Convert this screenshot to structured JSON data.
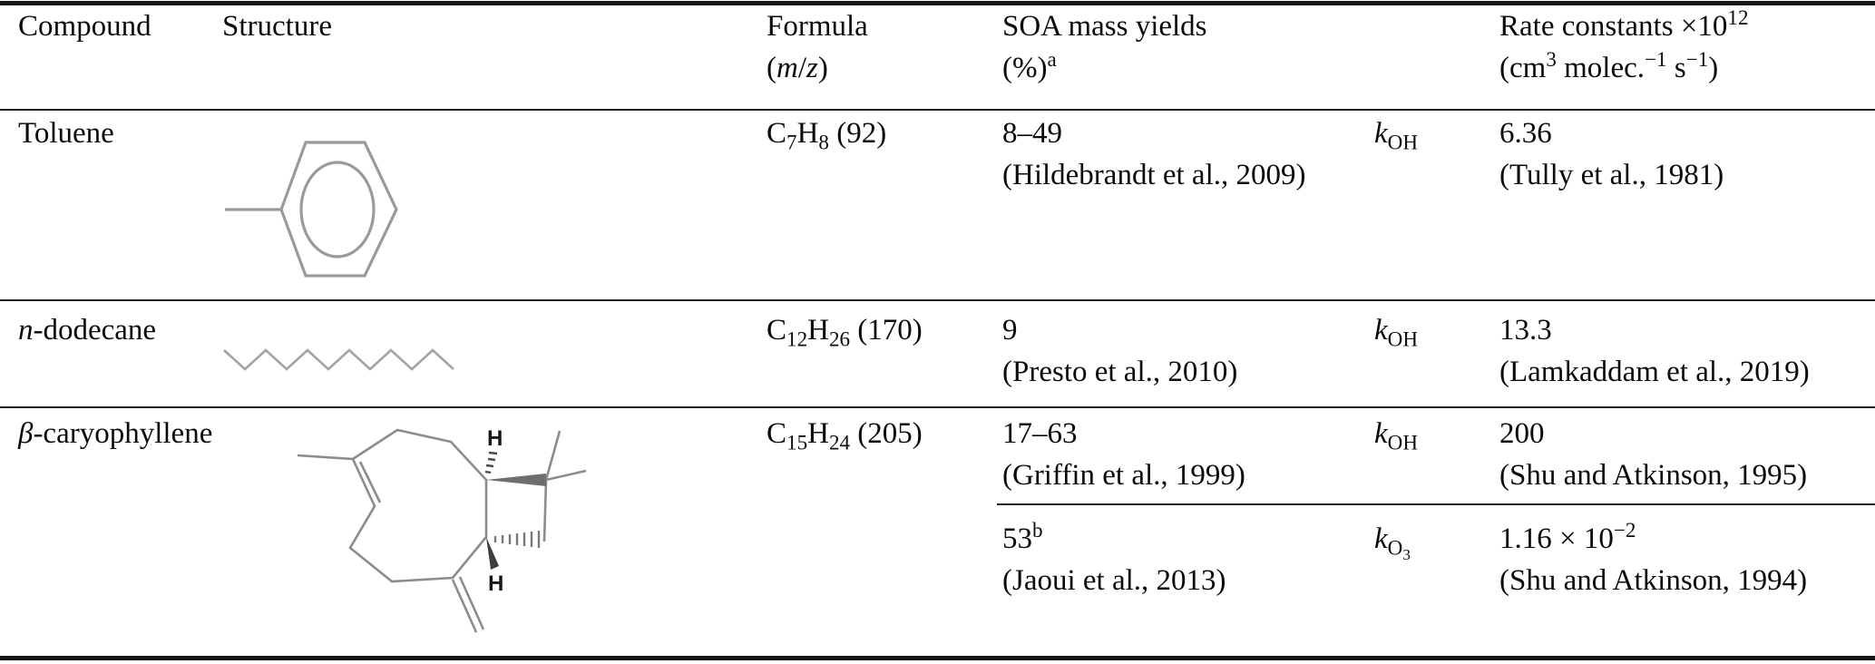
{
  "header": {
    "compound": "Compound",
    "structure": "Structure",
    "formula_l1": [
      {
        "t": "Formula"
      }
    ],
    "formula_l2": [
      {
        "t": "("
      },
      {
        "t": "m",
        "m": "i"
      },
      {
        "t": "/"
      },
      {
        "t": "z",
        "m": "i"
      },
      {
        "t": ")"
      }
    ],
    "soa_l1": [
      {
        "t": "SOA mass yields"
      }
    ],
    "soa_l2": [
      {
        "t": "(%)"
      },
      {
        "t": "a",
        "m": "sup"
      }
    ],
    "rate_l1": [
      {
        "t": "Rate constants ×10"
      },
      {
        "t": "12",
        "m": "sup"
      }
    ],
    "rate_l2": [
      {
        "t": "(cm"
      },
      {
        "t": "3",
        "m": "sup"
      },
      {
        "t": " molec."
      },
      {
        "t": "−1",
        "m": "sup"
      },
      {
        "t": " s"
      },
      {
        "t": "−1",
        "m": "sup"
      },
      {
        "t": ")"
      }
    ]
  },
  "rows": [
    {
      "compound": [
        {
          "t": "Toluene"
        }
      ],
      "structure_desc": "benzene ring with methyl substituent",
      "formula": [
        {
          "t": "C"
        },
        {
          "t": "7",
          "m": "sub"
        },
        {
          "t": "H"
        },
        {
          "t": "8",
          "m": "sub"
        },
        {
          "t": " (92)"
        }
      ],
      "entries": [
        {
          "soa_yield": [
            {
              "t": "8–49"
            }
          ],
          "soa_ref": [
            {
              "t": "(Hildebrandt et al., 2009)"
            }
          ],
          "k_label": [
            {
              "t": "k",
              "m": "i"
            },
            {
              "t": "OH",
              "m": "sub"
            }
          ],
          "rate_value": [
            {
              "t": "6.36"
            }
          ],
          "rate_ref": [
            {
              "t": "(Tully et al., 1981)"
            }
          ]
        }
      ]
    },
    {
      "compound": [
        {
          "t": "n",
          "m": "i"
        },
        {
          "t": "-dodecane"
        }
      ],
      "structure_desc": "zigzag alkane chain of 12 carbons",
      "formula": [
        {
          "t": "C"
        },
        {
          "t": "12",
          "m": "sub"
        },
        {
          "t": "H"
        },
        {
          "t": "26",
          "m": "sub"
        },
        {
          "t": " (170)"
        }
      ],
      "entries": [
        {
          "soa_yield": [
            {
              "t": "9"
            }
          ],
          "soa_ref": [
            {
              "t": "(Presto et al., 2010)"
            }
          ],
          "k_label": [
            {
              "t": "k",
              "m": "i"
            },
            {
              "t": "OH",
              "m": "sub"
            }
          ],
          "rate_value": [
            {
              "t": "13.3"
            }
          ],
          "rate_ref": [
            {
              "t": "(Lamkaddam et al., 2019)"
            }
          ]
        }
      ]
    },
    {
      "compound": [
        {
          "t": "β",
          "m": "i"
        },
        {
          "t": "-caryophyllene"
        }
      ],
      "structure_desc": "bicyclic sesquiterpene: nine-membered ring fused to cyclobutane with gem-dimethyl group, exocyclic methylene and two stereo H atoms",
      "formula": [
        {
          "t": "C"
        },
        {
          "t": "15",
          "m": "sub"
        },
        {
          "t": "H"
        },
        {
          "t": "24",
          "m": "sub"
        },
        {
          "t": " (205)"
        }
      ],
      "entries": [
        {
          "soa_yield": [
            {
              "t": "17–63"
            }
          ],
          "soa_ref": [
            {
              "t": "(Griffin et al., 1999)"
            }
          ],
          "k_label": [
            {
              "t": "k",
              "m": "i"
            },
            {
              "t": "OH",
              "m": "sub"
            }
          ],
          "rate_value": [
            {
              "t": "200"
            }
          ],
          "rate_ref": [
            {
              "t": "(Shu and Atkinson, 1995)"
            }
          ]
        },
        {
          "soa_yield": [
            {
              "t": "53"
            },
            {
              "t": "b",
              "m": "sup"
            }
          ],
          "soa_ref": [
            {
              "t": "(Jaoui et al., 2013)"
            }
          ],
          "k_label": [
            {
              "t": "k",
              "m": "i"
            },
            {
              "t": "O",
              "m": "sub"
            },
            {
              "t": "3",
              "m": "subsub"
            }
          ],
          "rate_value": [
            {
              "t": "1.16 × 10"
            },
            {
              "t": "−2",
              "m": "sup"
            }
          ],
          "rate_ref": [
            {
              "t": "(Shu and Atkinson, 1994)"
            }
          ]
        }
      ]
    }
  ],
  "stereo_labels": {
    "top_h": "H",
    "bottom_h": "H"
  }
}
